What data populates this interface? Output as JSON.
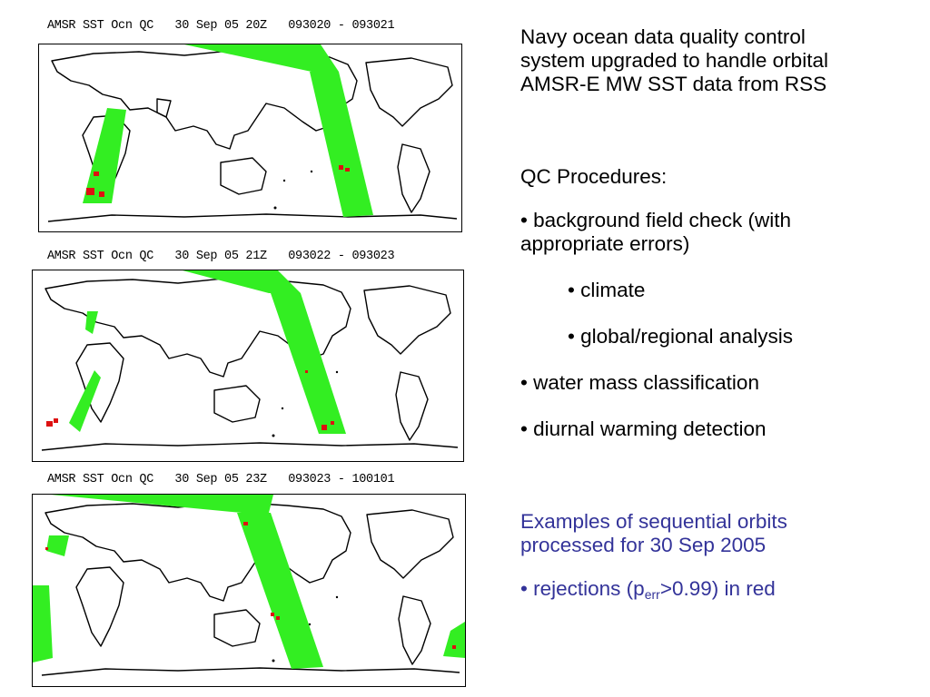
{
  "maps": [
    {
      "title": "AMSR SST Ocn QC   30 Sep 05 20Z   093020 - 093021"
    },
    {
      "title": "AMSR SST Ocn QC   30 Sep 05 21Z   093022 - 093023"
    },
    {
      "title": "AMSR SST Ocn QC   30 Sep 05 23Z   093023 - 100101"
    }
  ],
  "text_panel": {
    "intro": "Navy ocean data quality control system upgraded to handle orbital AMSR-E MW SST data from RSS",
    "qc_heading": "QC Procedures:",
    "bullet_background": "• background field check (with appropriate errors)",
    "sub_climate": "• climate",
    "sub_global": "• global/regional analysis",
    "bullet_water": "• water mass classification",
    "bullet_diurnal": "• diurnal warming detection",
    "examples": "Examples of sequential orbits processed for 30 Sep 2005",
    "rejections_prefix": "• rejections (p",
    "rejections_sub": "err",
    "rejections_suffix": ">0.99) in red"
  },
  "colors": {
    "swath": "#33ee22",
    "rejection": "#dd1111",
    "highlight_text": "#333399"
  }
}
